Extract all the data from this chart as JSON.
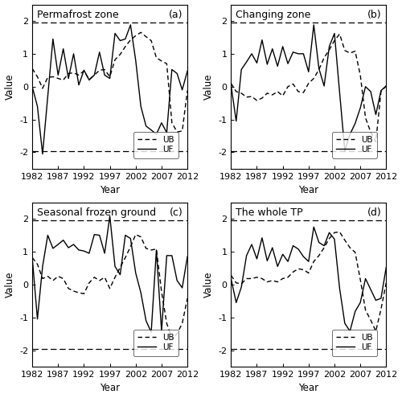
{
  "years": [
    1982,
    1983,
    1984,
    1985,
    1986,
    1987,
    1988,
    1989,
    1990,
    1991,
    1992,
    1993,
    1994,
    1995,
    1996,
    1997,
    1998,
    1999,
    2000,
    2001,
    2002,
    2003,
    2004,
    2005,
    2006,
    2007,
    2008,
    2009,
    2010,
    2011,
    2012
  ],
  "subplots": [
    {
      "title": "Permafrost zone",
      "label": "(a)",
      "UF": [
        0.0,
        -0.6,
        -2.05,
        -0.3,
        1.45,
        0.35,
        1.15,
        0.25,
        1.0,
        0.05,
        0.5,
        0.2,
        0.35,
        1.05,
        0.35,
        0.25,
        1.62,
        1.4,
        1.45,
        1.88,
        0.8,
        -0.6,
        -1.2,
        -1.32,
        -1.45,
        -1.1,
        -1.4,
        0.52,
        0.4,
        -0.1,
        0.48
      ],
      "UB": [
        0.55,
        0.3,
        -0.05,
        0.28,
        0.3,
        0.25,
        0.2,
        0.4,
        0.42,
        0.35,
        0.48,
        0.22,
        0.35,
        0.5,
        0.52,
        0.3,
        0.82,
        0.98,
        1.22,
        1.42,
        1.55,
        1.65,
        1.52,
        1.4,
        0.88,
        0.78,
        0.7,
        -1.1,
        -1.38,
        -1.35,
        -0.12
      ]
    },
    {
      "title": "Changing zone",
      "label": "(b)",
      "UF": [
        0.05,
        -1.05,
        0.52,
        0.75,
        1.0,
        0.72,
        1.42,
        0.68,
        1.15,
        0.62,
        1.22,
        0.7,
        1.05,
        1.0,
        1.0,
        0.45,
        1.88,
        0.55,
        0.02,
        1.22,
        1.62,
        -0.18,
        -1.95,
        -1.45,
        -1.12,
        -0.65,
        0.0,
        -0.15,
        -0.85,
        -0.12,
        0.02
      ],
      "UB": [
        0.1,
        -0.15,
        -0.2,
        -0.32,
        -0.3,
        -0.42,
        -0.35,
        -0.2,
        -0.25,
        -0.15,
        -0.28,
        0.0,
        0.08,
        -0.15,
        -0.18,
        0.1,
        0.25,
        0.52,
        0.88,
        1.12,
        1.4,
        1.6,
        1.1,
        1.02,
        1.08,
        0.35,
        -0.95,
        -1.38,
        -1.68,
        -0.15,
        0.02
      ]
    },
    {
      "title": "Seasonal frozen ground",
      "label": "(c)",
      "UF": [
        0.82,
        -1.05,
        0.55,
        1.5,
        1.1,
        1.22,
        1.35,
        1.12,
        1.22,
        1.05,
        1.02,
        0.95,
        1.52,
        1.5,
        0.95,
        2.08,
        0.55,
        0.3,
        1.5,
        1.4,
        0.35,
        -0.25,
        -1.1,
        -1.45,
        1.05,
        -1.42,
        0.88,
        0.88,
        0.12,
        -0.1,
        0.85
      ],
      "UB": [
        0.82,
        0.62,
        0.18,
        0.25,
        0.12,
        0.25,
        0.18,
        -0.12,
        -0.2,
        -0.25,
        -0.28,
        0.05,
        0.22,
        0.12,
        0.22,
        -0.12,
        0.22,
        0.52,
        0.82,
        1.15,
        1.52,
        1.45,
        1.1,
        1.05,
        1.08,
        -0.22,
        -1.18,
        -1.65,
        -1.5,
        -1.18,
        -0.42
      ]
    },
    {
      "title": "The whole TP",
      "label": "(d)",
      "UF": [
        0.18,
        -0.55,
        -0.08,
        0.88,
        1.22,
        0.78,
        1.42,
        0.72,
        1.12,
        0.55,
        0.92,
        0.7,
        1.18,
        1.08,
        0.85,
        0.7,
        1.75,
        1.28,
        1.18,
        1.58,
        1.38,
        -0.12,
        -1.18,
        -1.42,
        -0.82,
        -0.55,
        0.18,
        -0.15,
        -0.48,
        -0.42,
        0.52
      ],
      "UB": [
        0.28,
        0.05,
        0.02,
        0.18,
        0.18,
        0.22,
        0.18,
        0.08,
        0.12,
        0.08,
        0.18,
        0.22,
        0.38,
        0.48,
        0.45,
        0.35,
        0.7,
        0.88,
        1.12,
        1.4,
        1.58,
        1.6,
        1.35,
        1.12,
        0.98,
        0.15,
        -0.78,
        -1.08,
        -1.42,
        -0.75,
        0.05
      ]
    }
  ],
  "xlim": [
    1982,
    2012
  ],
  "ylim": [
    -2.5,
    2.5
  ],
  "yticks": [
    -2,
    -1,
    0,
    1,
    2
  ],
  "xticks": [
    1982,
    1987,
    1992,
    1997,
    2002,
    2007,
    2012
  ],
  "hlines": [
    1.96,
    -1.96
  ],
  "background_color": "#ffffff",
  "title_fontsize": 9,
  "axis_fontsize": 8.5,
  "tick_fontsize": 8
}
